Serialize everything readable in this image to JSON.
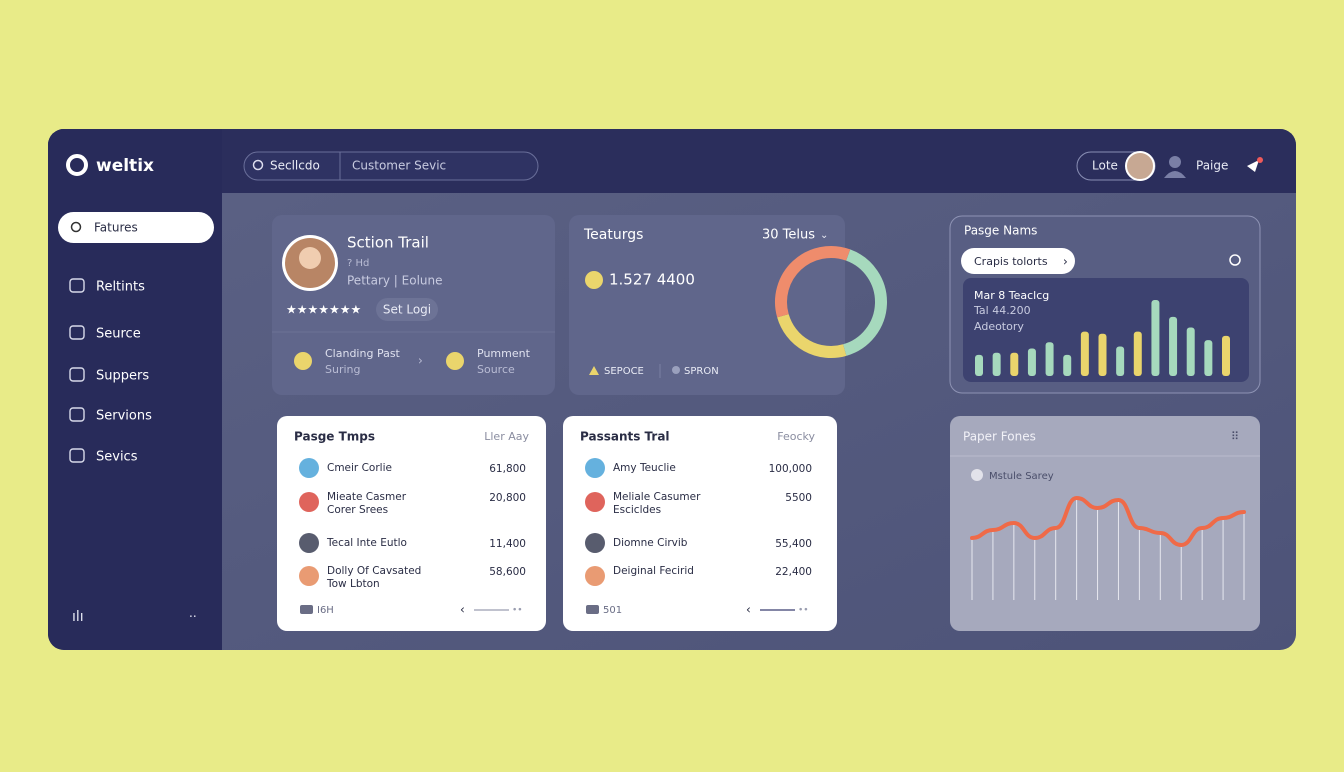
{
  "brand": "weltix",
  "search": {
    "scope": "Secllcdo",
    "query": "Customer Sevic"
  },
  "topbar": {
    "button": "Lote",
    "user": "Paige"
  },
  "sidebar": {
    "active": "Fatures",
    "items": [
      "Reltints",
      "Seurce",
      "Suppers",
      "Servions",
      "Sevics"
    ]
  },
  "profile": {
    "name": "Sction Trail",
    "meta": "? Hd",
    "role": "Pettary | Eolune",
    "button": "Set Logi",
    "stats": [
      {
        "title": "Clanding Past",
        "sub": "Suring"
      },
      {
        "title": "Pumment",
        "sub": "Source"
      }
    ]
  },
  "features": {
    "title": "Teaturgs",
    "filter": "30 Telus",
    "amount": "1.527 4400",
    "legend": [
      "SEPOCE",
      "SPRON"
    ],
    "donut": {
      "values": [
        40,
        25,
        35
      ],
      "colors": [
        "#a6d9bd",
        "#ead56c",
        "#ef8c6c"
      ]
    }
  },
  "pages": {
    "title": "Pasge Nams",
    "button": "Crapis tolorts",
    "panel": {
      "title": "Mar 8 Teaclcg",
      "value": "Tal 44.200",
      "sub": "Adeotory"
    },
    "bars": {
      "values": [
        20,
        22,
        22,
        26,
        32,
        20,
        42,
        40,
        28,
        42,
        72,
        56,
        46,
        34,
        38
      ],
      "colors": [
        "#a6d9bd",
        "#a6d9bd",
        "#ead56c",
        "#a6d9bd",
        "#a6d9bd",
        "#a6d9bd",
        "#ead56c",
        "#ead56c",
        "#a6d9bd",
        "#ead56c",
        "#a6d9bd",
        "#a6d9bd",
        "#a6d9bd",
        "#a6d9bd",
        "#ead56c"
      ]
    }
  },
  "tables": [
    {
      "title": "Pasge Tmps",
      "filter": "Ller Aay",
      "footer": "I6H",
      "rows": [
        [
          "Cmeir Corlie",
          "61,800"
        ],
        [
          "Mieate Casmer\nCorer Srees",
          "20,800"
        ],
        [
          "Tecal Inte Eutlo",
          "11,400"
        ],
        [
          "Dolly Of Cavsated\nTow Lbton",
          "58,600"
        ]
      ]
    },
    {
      "title": "Passants Tral",
      "filter": "Feocky",
      "footer": "501",
      "rows": [
        [
          "Amy Teuclie",
          "100,000"
        ],
        [
          "Meliale Casumer\nEscicldes",
          "5500"
        ],
        [
          "Diomne Cirvib",
          "55,400"
        ],
        [
          "Deiginal Fecirid",
          "22,400"
        ]
      ]
    }
  ],
  "trend": {
    "title": "Paper Fones",
    "legend": "Mstule Sarey",
    "color": "#ef6a48",
    "values": [
      10,
      18,
      25,
      10,
      20,
      50,
      40,
      48,
      20,
      15,
      3,
      20,
      30,
      36
    ]
  }
}
